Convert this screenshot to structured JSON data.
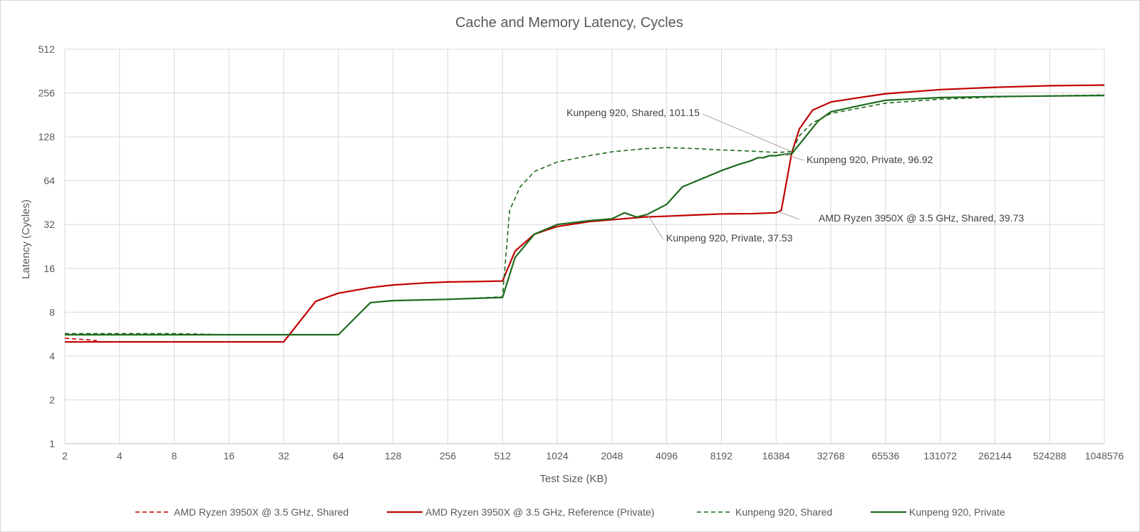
{
  "chart_data": {
    "type": "line",
    "title": "Cache and Memory Latency, Cycles",
    "xlabel": "Test Size (KB)",
    "ylabel": "Latency (Cycles)",
    "x_scale": "log2",
    "y_scale": "log2",
    "xlim": [
      2,
      1048576
    ],
    "ylim": [
      1,
      512
    ],
    "x_ticks": [
      "2",
      "4",
      "8",
      "16",
      "32",
      "64",
      "128",
      "256",
      "512",
      "1024",
      "2048",
      "4096",
      "8192",
      "16384",
      "32768",
      "65536",
      "131072",
      "262144",
      "524288",
      "1048576"
    ],
    "y_ticks": [
      "1",
      "2",
      "4",
      "8",
      "16",
      "32",
      "64",
      "128",
      "256",
      "512"
    ],
    "grid": true,
    "legend_position": "bottom",
    "series": [
      {
        "name": "AMD Ryzen 3950X @ 3.5 GHz, Shared",
        "color": "#c00000",
        "dash": "dashed",
        "points": [
          [
            2,
            5.3
          ],
          [
            2.5,
            5.2
          ],
          [
            3,
            5.1
          ]
        ]
      },
      {
        "name": "AMD Ryzen 3950X @ 3.5 GHz, Reference (Private)",
        "color": "#c00000",
        "dash": "solid",
        "points": [
          [
            2,
            5
          ],
          [
            4,
            5
          ],
          [
            8,
            5
          ],
          [
            16,
            5
          ],
          [
            32,
            5
          ],
          [
            48,
            9.5
          ],
          [
            64,
            10.8
          ],
          [
            96,
            11.8
          ],
          [
            128,
            12.3
          ],
          [
            192,
            12.7
          ],
          [
            256,
            12.9
          ],
          [
            384,
            13
          ],
          [
            512,
            13.1
          ],
          [
            600,
            21
          ],
          [
            768,
            27.5
          ],
          [
            1024,
            31
          ],
          [
            1536,
            33.5
          ],
          [
            2048,
            34.5
          ],
          [
            3072,
            36
          ],
          [
            4096,
            36.5
          ],
          [
            6144,
            37.3
          ],
          [
            8192,
            37.8
          ],
          [
            12288,
            38
          ],
          [
            16384,
            38.5
          ],
          [
            17500,
            40
          ],
          [
            20000,
            100
          ],
          [
            22000,
            145
          ],
          [
            26000,
            195
          ],
          [
            32768,
            222
          ],
          [
            49152,
            240
          ],
          [
            65536,
            253
          ],
          [
            131072,
            270
          ],
          [
            262144,
            280
          ],
          [
            524288,
            287
          ],
          [
            1048576,
            290
          ]
        ]
      },
      {
        "name": "Kunpeng 920, Shared",
        "color": "#1e6b1e",
        "dash": "dashed",
        "points": [
          [
            2,
            5.7
          ],
          [
            4,
            5.7
          ],
          [
            8,
            5.7
          ],
          [
            16,
            5.6
          ],
          [
            32,
            5.6
          ],
          [
            64,
            5.6
          ],
          [
            96,
            9.3
          ],
          [
            128,
            9.6
          ],
          [
            256,
            9.8
          ],
          [
            512,
            10.2
          ],
          [
            560,
            40
          ],
          [
            640,
            58
          ],
          [
            768,
            74
          ],
          [
            1024,
            86
          ],
          [
            1536,
            95
          ],
          [
            2048,
            101
          ],
          [
            3072,
            106
          ],
          [
            4096,
            108
          ],
          [
            6144,
            106
          ],
          [
            8192,
            104
          ],
          [
            12288,
            102
          ],
          [
            16384,
            100
          ],
          [
            20000,
            101.15
          ],
          [
            22000,
            130
          ],
          [
            26000,
            160
          ],
          [
            32768,
            185
          ],
          [
            65536,
            218
          ],
          [
            131072,
            232
          ],
          [
            262144,
            240
          ],
          [
            524288,
            245
          ],
          [
            1048576,
            248
          ]
        ]
      },
      {
        "name": "Kunpeng 920, Private",
        "color": "#1e6b1e",
        "dash": "solid",
        "points": [
          [
            2,
            5.6
          ],
          [
            4,
            5.6
          ],
          [
            8,
            5.6
          ],
          [
            16,
            5.6
          ],
          [
            32,
            5.6
          ],
          [
            64,
            5.6
          ],
          [
            96,
            9.3
          ],
          [
            128,
            9.6
          ],
          [
            256,
            9.8
          ],
          [
            512,
            10.1
          ],
          [
            600,
            19
          ],
          [
            768,
            27.5
          ],
          [
            1024,
            32
          ],
          [
            1536,
            34
          ],
          [
            2048,
            35
          ],
          [
            2400,
            38.5
          ],
          [
            2800,
            36
          ],
          [
            3200,
            37.53
          ],
          [
            4096,
            44
          ],
          [
            5000,
            58
          ],
          [
            8192,
            75
          ],
          [
            10000,
            82
          ],
          [
            12000,
            88
          ],
          [
            13000,
            92
          ],
          [
            14000,
            92
          ],
          [
            15000,
            95
          ],
          [
            16384,
            95
          ],
          [
            18000,
            96.92
          ],
          [
            20000,
            98
          ],
          [
            24000,
            130
          ],
          [
            28000,
            165
          ],
          [
            32768,
            190
          ],
          [
            49152,
            212
          ],
          [
            65536,
            228
          ],
          [
            131072,
            238
          ],
          [
            262144,
            242
          ],
          [
            524288,
            244
          ],
          [
            1048576,
            246
          ]
        ]
      }
    ],
    "annotations": [
      {
        "text": "Kunpeng 920, Shared, 101.15",
        "x": 20000,
        "y": 101.15,
        "label_side": "left"
      },
      {
        "text": "Kunpeng 920, Private, 96.92",
        "x": 18000,
        "y": 96.92,
        "label_side": "right"
      },
      {
        "text": "AMD Ryzen 3950X @ 3.5 GHz, Shared, 39.73",
        "x": 16384,
        "y": 39.73,
        "label_side": "right"
      },
      {
        "text": "Kunpeng 920, Private, 37.53",
        "x": 3200,
        "y": 37.53,
        "label_side": "right"
      }
    ]
  }
}
